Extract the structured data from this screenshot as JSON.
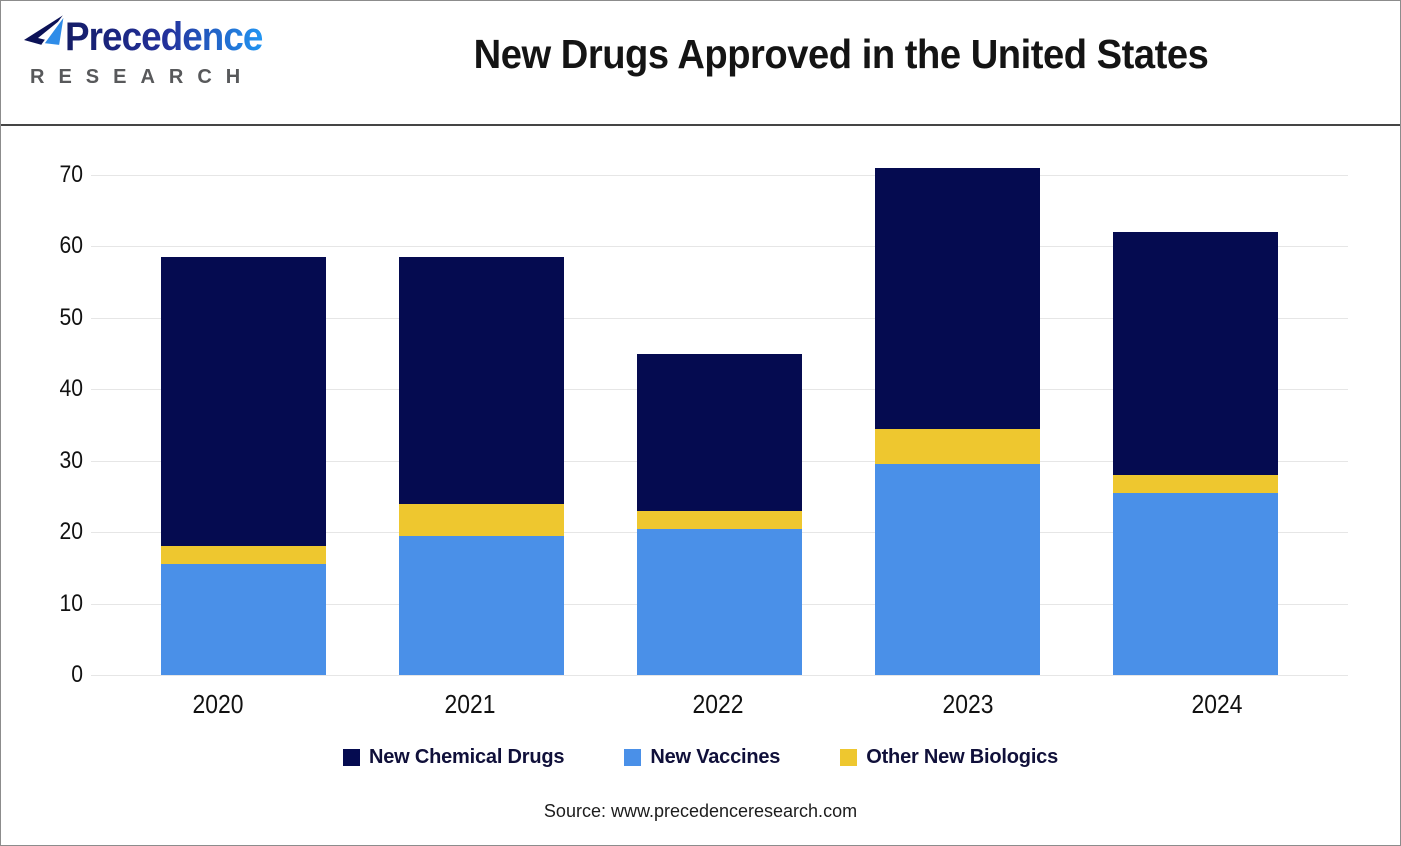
{
  "header": {
    "logo": {
      "brand": "Precedence",
      "subtitle": "RESEARCH"
    },
    "title": "New Drugs Approved in the United States"
  },
  "chart_data": {
    "type": "bar",
    "stacked": true,
    "title": "New Drugs Approved in the United States",
    "categories": [
      "2020",
      "2021",
      "2022",
      "2023",
      "2024"
    ],
    "series": [
      {
        "name": "New Chemical Drugs",
        "color": "#050b50",
        "values": [
          40.5,
          34.5,
          22,
          36.5,
          34
        ]
      },
      {
        "name": "New Vaccines",
        "color": "#4a90e8",
        "values": [
          15.5,
          19.5,
          20.5,
          29.5,
          25.5
        ]
      },
      {
        "name": "Other New Biologics",
        "color": "#eec72f",
        "values": [
          2.5,
          4.5,
          2.5,
          5,
          2.5
        ]
      }
    ],
    "stack_order_bottom_to_top": [
      "New Vaccines",
      "Other New Biologics",
      "New Chemical Drugs"
    ],
    "stacked_totals": [
      58.5,
      58.5,
      45,
      71,
      62
    ],
    "xlabel": "",
    "ylabel": "",
    "ylim": [
      0,
      70
    ],
    "yticks": [
      0,
      10,
      20,
      30,
      40,
      50,
      60,
      70
    ],
    "grid": "horizontal",
    "legend_position": "bottom"
  },
  "footer": {
    "source": "Source: www.precedenceresearch.com"
  },
  "colors": {
    "chemical_navy": "#050b50",
    "vaccine_blue": "#4a90e8",
    "biologics_yellow": "#eec72f",
    "gridline": "#e6e6e6",
    "header_rule": "#454545",
    "outer_border": "#8c8c8c",
    "research_gray": "#58595b",
    "title_black": "#141414"
  }
}
